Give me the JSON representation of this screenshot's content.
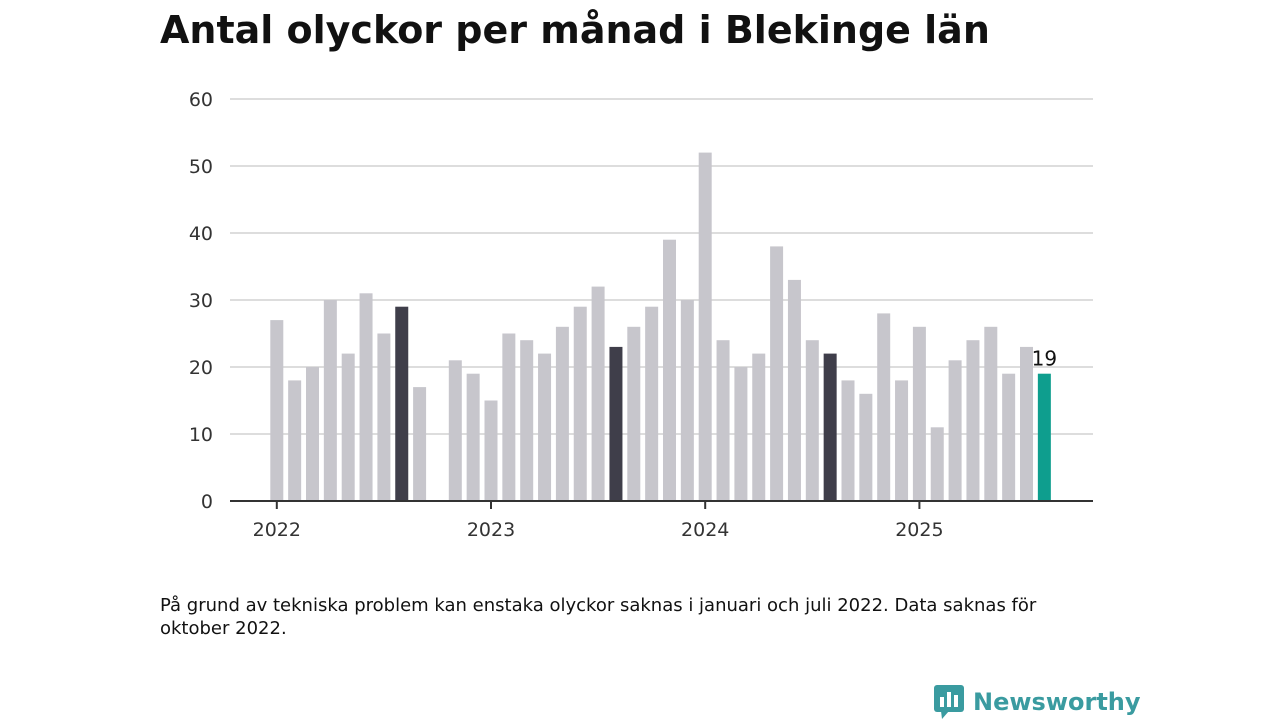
{
  "title": "Antal olyckor per månad i Blekinge län",
  "note": "På grund av tekniska problem kan enstaka olyckor saknas i januari och juli 2022. Data saknas för oktober 2022.",
  "brand": {
    "name": "Newsworthy",
    "icon": "newsworthy-logo-icon"
  },
  "colors": {
    "bar_default": "#c7c6cc",
    "bar_highlight": "#3f3e4a",
    "bar_latest": "#0e9e8e",
    "grid": "#dddddd",
    "baseline": "#333333",
    "brand": "#3a9ba0"
  },
  "chart_data": {
    "type": "bar",
    "title": "Antal olyckor per månad i Blekinge län",
    "xlabel": "",
    "ylabel": "",
    "ylim": [
      0,
      60
    ],
    "yticks": [
      0,
      10,
      20,
      30,
      40,
      50,
      60
    ],
    "xticks": [
      "2022",
      "2023",
      "2024",
      "2025"
    ],
    "grid": true,
    "series": [
      {
        "x": [
          "2022-01",
          "2022-02",
          "2022-03",
          "2022-04",
          "2022-05",
          "2022-06",
          "2022-07",
          "2022-08",
          "2022-09",
          "2022-10",
          "2022-11",
          "2022-12",
          "2023-01",
          "2023-02",
          "2023-03",
          "2023-04",
          "2023-05",
          "2023-06",
          "2023-07",
          "2023-08",
          "2023-09",
          "2023-10",
          "2023-11",
          "2023-12",
          "2024-01",
          "2024-02",
          "2024-03",
          "2024-04",
          "2024-05",
          "2024-06",
          "2024-07",
          "2024-08",
          "2024-09",
          "2024-10",
          "2024-11",
          "2024-12",
          "2025-01",
          "2025-02",
          "2025-03",
          "2025-04",
          "2025-05",
          "2025-06",
          "2025-07",
          "2025-08"
        ],
        "values": [
          27,
          18,
          20,
          30,
          22,
          31,
          25,
          29,
          17,
          null,
          21,
          19,
          15,
          25,
          24,
          22,
          26,
          29,
          32,
          23,
          26,
          29,
          39,
          30,
          52,
          24,
          20,
          22,
          38,
          33,
          24,
          22,
          18,
          16,
          28,
          18,
          26,
          11,
          21,
          24,
          26,
          19,
          23,
          19
        ],
        "highlight": [
          "2022-08",
          "2023-08",
          "2024-08"
        ],
        "latest": "2025-08",
        "latest_label": "19"
      }
    ]
  }
}
